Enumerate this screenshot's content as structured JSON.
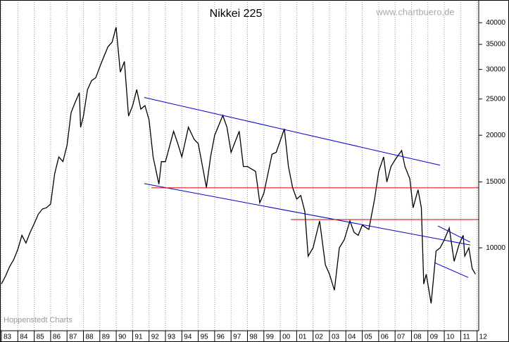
{
  "chart_data": {
    "type": "line",
    "title": "Nikkei 225",
    "annotations": [
      "www.chartbuero.de",
      "Hoppenstedt Charts"
    ],
    "log_scale": true,
    "color": "#000000",
    "x": [
      1983.0,
      1983.25,
      1983.5,
      1983.75,
      1984.0,
      1984.25,
      1984.5,
      1984.75,
      1985.0,
      1985.25,
      1985.5,
      1985.75,
      1986.0,
      1986.25,
      1986.5,
      1986.75,
      1987.0,
      1987.25,
      1987.5,
      1987.75,
      1987.83,
      1988.0,
      1988.25,
      1988.5,
      1988.75,
      1989.0,
      1989.25,
      1989.5,
      1989.75,
      1989.99,
      1990.25,
      1990.5,
      1990.75,
      1991.0,
      1991.25,
      1991.5,
      1991.75,
      1992.0,
      1992.25,
      1992.6,
      1992.75,
      1993.0,
      1993.5,
      1993.75,
      1994.0,
      1994.4,
      1994.75,
      1995.0,
      1995.5,
      1995.75,
      1996.0,
      1996.5,
      1996.75,
      1997.0,
      1997.5,
      1997.75,
      1998.0,
      1998.5,
      1998.75,
      1999.0,
      1999.5,
      1999.75,
      2000.25,
      2000.5,
      2000.75,
      2001.0,
      2001.25,
      2001.5,
      2001.7,
      2002.0,
      2002.4,
      2002.75,
      2003.0,
      2003.3,
      2003.6,
      2003.9,
      2004.25,
      2004.5,
      2004.75,
      2005.0,
      2005.4,
      2005.75,
      2006.0,
      2006.3,
      2006.5,
      2006.75,
      2007.0,
      2007.4,
      2007.6,
      2007.9,
      2008.1,
      2008.4,
      2008.6,
      2008.75,
      2008.9,
      2009.2,
      2009.5,
      2009.75,
      2010.0,
      2010.3,
      2010.6,
      2010.9,
      2011.15,
      2011.25,
      2011.5,
      2011.7,
      2011.9
    ],
    "values": [
      8000,
      8400,
      8900,
      9300,
      9900,
      10800,
      10300,
      11000,
      11600,
      12300,
      12700,
      12800,
      13100,
      15800,
      17500,
      17000,
      18800,
      23000,
      24500,
      26000,
      21000,
      22500,
      26500,
      28000,
      28500,
      30500,
      32500,
      34500,
      35500,
      38900,
      29500,
      31500,
      22500,
      24000,
      26500,
      23500,
      24000,
      22000,
      17500,
      14800,
      17000,
      17000,
      20500,
      19000,
      17500,
      21000,
      19500,
      19000,
      14500,
      17500,
      20000,
      22600,
      21000,
      18000,
      20500,
      16500,
      16500,
      16000,
      13200,
      14000,
      17800,
      18000,
      20800,
      16500,
      14500,
      13500,
      13800,
      12500,
      9500,
      10000,
      11800,
      9000,
      8500,
      7700,
      10000,
      10500,
      11800,
      11000,
      10800,
      11500,
      11200,
      13500,
      16000,
      17500,
      15000,
      16500,
      17200,
      18200,
      16500,
      15300,
      12800,
      14300,
      12800,
      8000,
      8500,
      7100,
      9800,
      10000,
      10500,
      11300,
      9200,
      10200,
      10800,
      9500,
      10000,
      8800,
      8500
    ],
    "trendlines": [
      {
        "color": "#0000cc",
        "x": [
          1991.71,
          2009.74
        ],
        "y": [
          25240,
          16630
        ]
      },
      {
        "color": "#0000cc",
        "x": [
          1991.71,
          2011.58
        ],
        "y": [
          14850,
          10175
        ]
      },
      {
        "color": "#dd0000",
        "x": [
          1992.14,
          2012.1
        ],
        "y": [
          14470,
          14470
        ]
      },
      {
        "color": "#dd0000",
        "x": [
          2000.64,
          2012.1
        ],
        "y": [
          11900,
          11900
        ]
      },
      {
        "color": "#0000cc",
        "x": [
          2009.61,
          2011.58
        ],
        "y": [
          11440,
          10354
        ]
      },
      {
        "color": "#0000cc",
        "x": [
          2009.4,
          2011.46
        ],
        "y": [
          9127,
          8330
        ]
      }
    ],
    "xlim": [
      1983,
      2012.1
    ],
    "xticks": [
      {
        "value": 1983,
        "label": "83"
      },
      {
        "value": 1984,
        "label": "84"
      },
      {
        "value": 1985,
        "label": "85"
      },
      {
        "value": 1986,
        "label": "86"
      },
      {
        "value": 1987,
        "label": "87"
      },
      {
        "value": 1988,
        "label": "88"
      },
      {
        "value": 1989,
        "label": "89"
      },
      {
        "value": 1990,
        "label": "90"
      },
      {
        "value": 1991,
        "label": "91"
      },
      {
        "value": 1992,
        "label": "92"
      },
      {
        "value": 1993,
        "label": "93"
      },
      {
        "value": 1994,
        "label": "94"
      },
      {
        "value": 1995,
        "label": "95"
      },
      {
        "value": 1996,
        "label": "96"
      },
      {
        "value": 1997,
        "label": "97"
      },
      {
        "value": 1998,
        "label": "98"
      },
      {
        "value": 1999,
        "label": "99"
      },
      {
        "value": 2000,
        "label": "00"
      },
      {
        "value": 2001,
        "label": "01"
      },
      {
        "value": 2002,
        "label": "02"
      },
      {
        "value": 2003,
        "label": "03"
      },
      {
        "value": 2004,
        "label": "04"
      },
      {
        "value": 2005,
        "label": "05"
      },
      {
        "value": 2006,
        "label": "06"
      },
      {
        "value": 2007,
        "label": "07"
      },
      {
        "value": 2008,
        "label": "08"
      },
      {
        "value": 2009,
        "label": "09"
      },
      {
        "value": 2010,
        "label": "10"
      },
      {
        "value": 2011,
        "label": "11"
      },
      {
        "value": 2012,
        "label": "12"
      }
    ],
    "ylim": [
      6000,
      46000
    ],
    "yticks": [
      10000,
      15000,
      20000,
      25000,
      30000,
      35000,
      40000
    ],
    "grid": true
  }
}
